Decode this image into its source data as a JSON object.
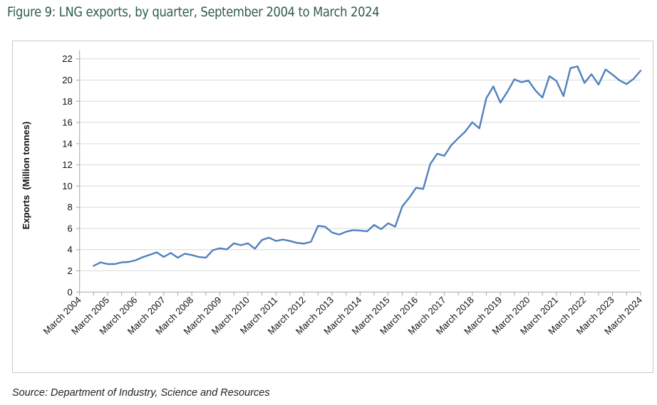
{
  "title": "Figure 9: LNG exports, by quarter, September 2004 to March 2024",
  "source": "Source: Department of Industry, Science and Resources",
  "chart_data": {
    "type": "line",
    "title": "Figure 9: LNG exports, by quarter, September 2004 to March 2024",
    "xlabel": "",
    "ylabel": "Exports  (Million tonnes)",
    "ylim": [
      0,
      22
    ],
    "yticks": [
      0,
      2,
      4,
      6,
      8,
      10,
      12,
      14,
      16,
      18,
      20,
      22
    ],
    "grid": true,
    "legend": "none",
    "line_color": "#4f81bd",
    "x_axis_start": "March 2004",
    "x_tick_labels": [
      "March 2004",
      "March 2005",
      "March 2006",
      "March 2007",
      "March 2008",
      "March 2009",
      "March 2010",
      "March 2011",
      "March 2012",
      "March 2013",
      "March 2014",
      "March 2015",
      "March 2016",
      "March 2017",
      "March 2018",
      "March 2019",
      "March 2020",
      "March 2021",
      "March 2022",
      "March 2023",
      "March 2024"
    ],
    "x": [
      "Sep 2004",
      "Dec 2004",
      "Mar 2005",
      "Jun 2005",
      "Sep 2005",
      "Dec 2005",
      "Mar 2006",
      "Jun 2006",
      "Sep 2006",
      "Dec 2006",
      "Mar 2007",
      "Jun 2007",
      "Sep 2007",
      "Dec 2007",
      "Mar 2008",
      "Jun 2008",
      "Sep 2008",
      "Dec 2008",
      "Mar 2009",
      "Jun 2009",
      "Sep 2009",
      "Dec 2009",
      "Mar 2010",
      "Jun 2010",
      "Sep 2010",
      "Dec 2010",
      "Mar 2011",
      "Jun 2011",
      "Sep 2011",
      "Dec 2011",
      "Mar 2012",
      "Jun 2012",
      "Sep 2012",
      "Dec 2012",
      "Mar 2013",
      "Jun 2013",
      "Sep 2013",
      "Dec 2013",
      "Mar 2014",
      "Jun 2014",
      "Sep 2014",
      "Dec 2014",
      "Mar 2015",
      "Jun 2015",
      "Sep 2015",
      "Dec 2015",
      "Mar 2016",
      "Jun 2016",
      "Sep 2016",
      "Dec 2016",
      "Mar 2017",
      "Jun 2017",
      "Sep 2017",
      "Dec 2017",
      "Mar 2018",
      "Jun 2018",
      "Sep 2018",
      "Dec 2018",
      "Mar 2019",
      "Jun 2019",
      "Sep 2019",
      "Dec 2019",
      "Mar 2020",
      "Jun 2020",
      "Sep 2020",
      "Dec 2020",
      "Mar 2021",
      "Jun 2021",
      "Sep 2021",
      "Dec 2021",
      "Mar 2022",
      "Jun 2022",
      "Sep 2022",
      "Dec 2022",
      "Mar 2023",
      "Jun 2023",
      "Sep 2023",
      "Dec 2023",
      "Mar 2024"
    ],
    "series": [
      {
        "name": "LNG exports",
        "values": [
          2.47,
          2.8,
          2.64,
          2.64,
          2.8,
          2.84,
          3.0,
          3.29,
          3.51,
          3.75,
          3.31,
          3.69,
          3.24,
          3.62,
          3.49,
          3.31,
          3.24,
          3.95,
          4.13,
          4.02,
          4.6,
          4.42,
          4.6,
          4.09,
          4.91,
          5.13,
          4.82,
          4.95,
          4.82,
          4.64,
          4.57,
          4.75,
          6.24,
          6.17,
          5.62,
          5.42,
          5.69,
          5.84,
          5.8,
          5.73,
          6.33,
          5.93,
          6.49,
          6.17,
          8.07,
          8.89,
          9.84,
          9.73,
          12.07,
          13.05,
          12.85,
          13.85,
          14.52,
          15.15,
          16.02,
          15.44,
          18.29,
          19.4,
          17.87,
          18.89,
          20.07,
          19.8,
          19.95,
          19.02,
          18.35,
          20.37,
          19.91,
          18.49,
          21.13,
          21.29,
          19.73,
          20.55,
          19.57,
          21.0,
          20.51,
          19.97,
          19.62,
          20.11,
          20.89
        ]
      }
    ]
  }
}
